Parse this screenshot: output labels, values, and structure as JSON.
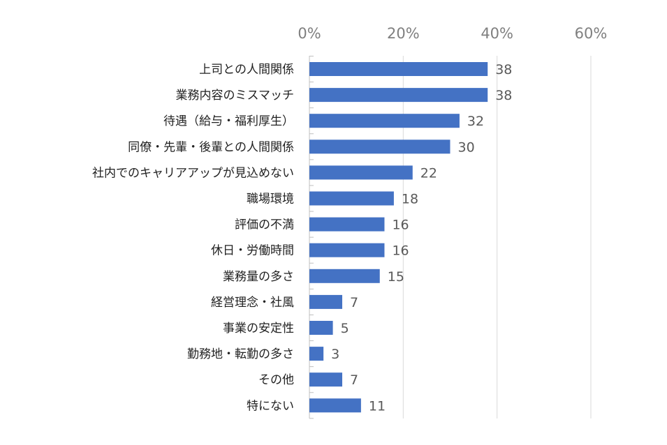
{
  "chart_data": {
    "type": "bar",
    "orientation": "horizontal",
    "categories": [
      "上司との人間関係",
      "業務内容のミスマッチ",
      "待遇（給与・福利厚生）",
      "同僚・先輩・後輩との人間関係",
      "社内でのキャリアアップが見込めない",
      "職場環境",
      "評価の不満",
      "休日・労働時間",
      "業務量の多さ",
      "経営理念・社風",
      "事業の安定性",
      "勤務地・転勤の多さ",
      "その他",
      "特にない"
    ],
    "values": [
      38,
      38,
      32,
      30,
      22,
      18,
      16,
      16,
      15,
      7,
      5,
      3,
      7,
      11
    ],
    "xlim": [
      0,
      60
    ],
    "x_ticks": [
      0,
      20,
      40,
      60
    ],
    "x_tick_labels": [
      "0%",
      "20%",
      "40%",
      "60%"
    ],
    "x_axis_position": "top",
    "grid": true,
    "legend": "none",
    "bar_color": "#4472c4",
    "title": "",
    "xlabel": "",
    "ylabel": ""
  }
}
